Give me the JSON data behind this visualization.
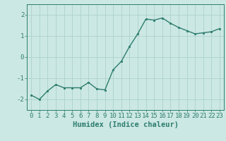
{
  "x": [
    0,
    1,
    2,
    3,
    4,
    5,
    6,
    7,
    8,
    9,
    10,
    11,
    12,
    13,
    14,
    15,
    16,
    17,
    18,
    19,
    20,
    21,
    22,
    23
  ],
  "y": [
    -1.8,
    -2.0,
    -1.6,
    -1.3,
    -1.45,
    -1.45,
    -1.45,
    -1.2,
    -1.5,
    -1.55,
    -0.6,
    -0.2,
    0.5,
    1.1,
    1.8,
    1.75,
    1.85,
    1.6,
    1.4,
    1.25,
    1.1,
    1.15,
    1.2,
    1.35
  ],
  "line_color": "#2d7d6e",
  "marker_color": "#2d7d6e",
  "bg_color": "#cce8e4",
  "grid_color": "#b0d4cf",
  "axis_color": "#2d7d6e",
  "xlabel": "Humidex (Indice chaleur)",
  "xlabel_fontsize": 7.5,
  "tick_fontsize": 6.5,
  "ylim": [
    -2.5,
    2.5
  ],
  "xlim": [
    -0.5,
    23.5
  ],
  "yticks": [
    -2,
    -1,
    0,
    1,
    2
  ],
  "xticks": [
    0,
    1,
    2,
    3,
    4,
    5,
    6,
    7,
    8,
    9,
    10,
    11,
    12,
    13,
    14,
    15,
    16,
    17,
    18,
    19,
    20,
    21,
    22,
    23
  ]
}
